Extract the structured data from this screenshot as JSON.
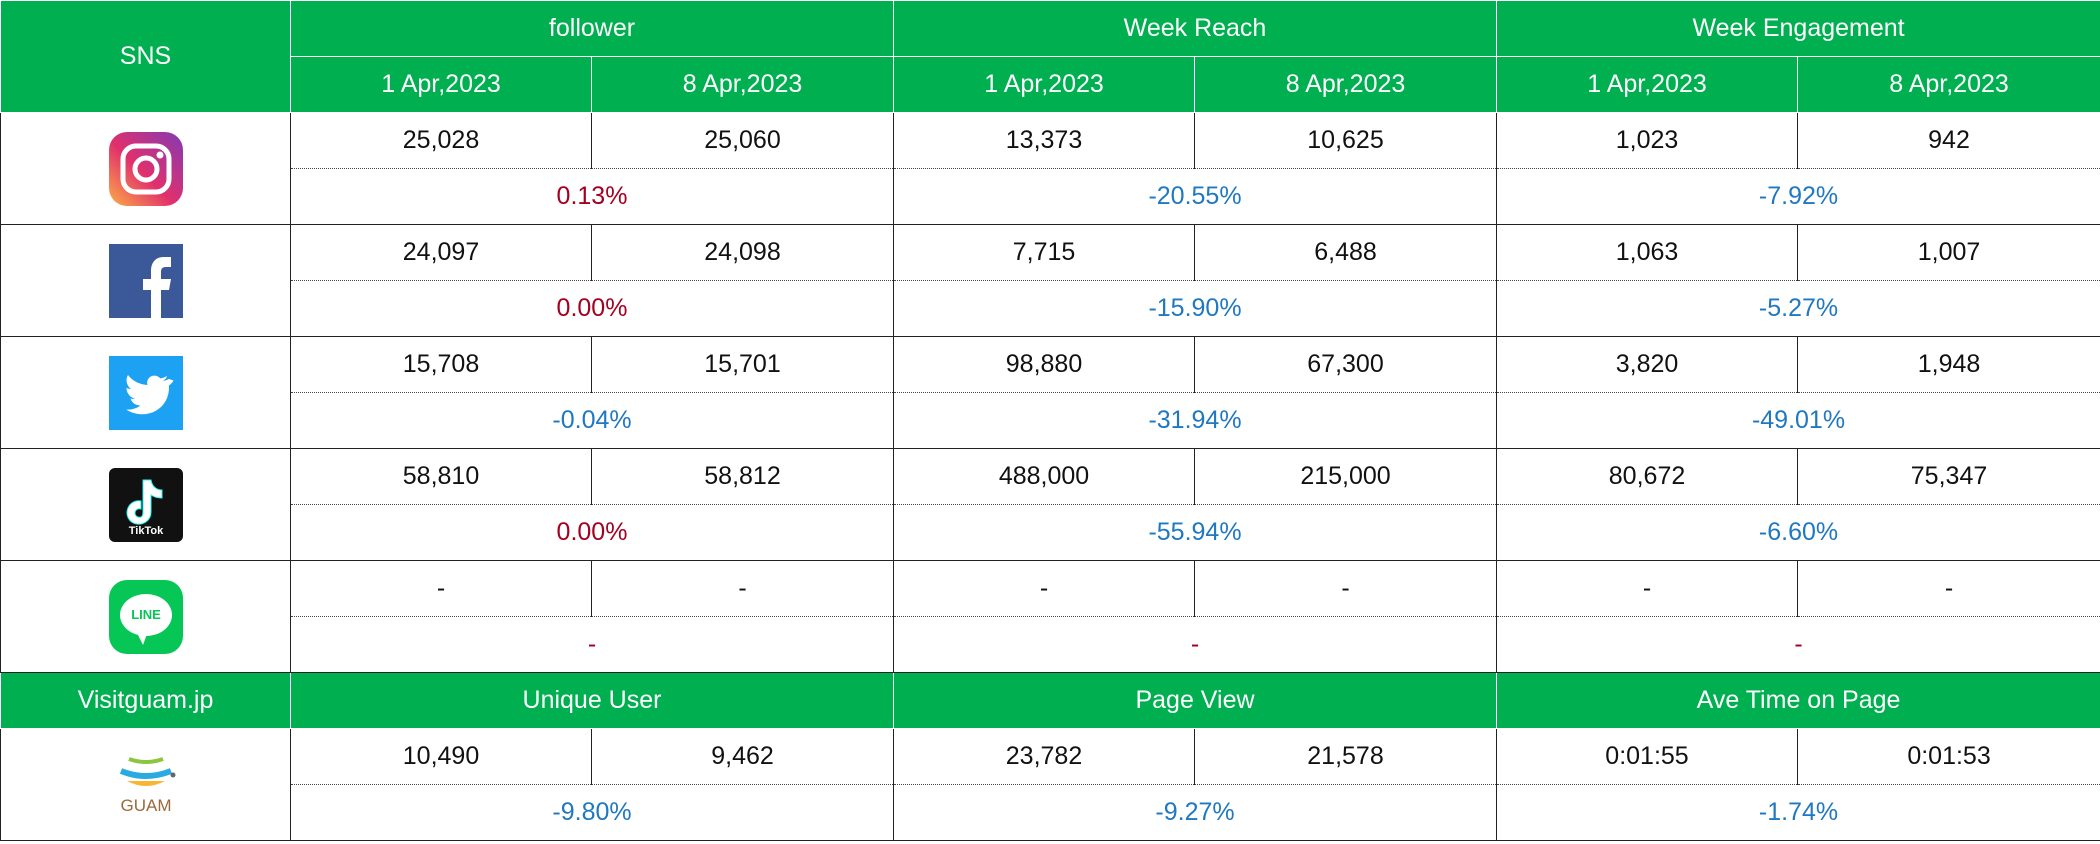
{
  "header": {
    "sns": "SNS",
    "groups": [
      "follower",
      "Week Reach",
      "Week Engagement"
    ],
    "dates": [
      "1 Apr,2023",
      "8 Apr,2023"
    ]
  },
  "rows": [
    {
      "values": [
        "25,028",
        "25,060",
        "13,373",
        "10,625",
        "1,023",
        "942"
      ],
      "changes": [
        {
          "text": "0.13%",
          "color": "#a50021"
        },
        {
          "text": "-20.55%",
          "color": "#1f78c1"
        },
        {
          "text": "-7.92%",
          "color": "#1f78c1"
        }
      ]
    },
    {
      "values": [
        "24,097",
        "24,098",
        "7,715",
        "6,488",
        "1,063",
        "1,007"
      ],
      "changes": [
        {
          "text": "0.00%",
          "color": "#a50021"
        },
        {
          "text": "-15.90%",
          "color": "#1f78c1"
        },
        {
          "text": "-5.27%",
          "color": "#1f78c1"
        }
      ]
    },
    {
      "values": [
        "15,708",
        "15,701",
        "98,880",
        "67,300",
        "3,820",
        "1,948"
      ],
      "changes": [
        {
          "text": "-0.04%",
          "color": "#1f78c1"
        },
        {
          "text": "-31.94%",
          "color": "#1f78c1"
        },
        {
          "text": "-49.01%",
          "color": "#1f78c1"
        }
      ]
    },
    {
      "icon_text": "TikTok",
      "values": [
        "58,810",
        "58,812",
        "488,000",
        "215,000",
        "80,672",
        "75,347"
      ],
      "changes": [
        {
          "text": "0.00%",
          "color": "#a50021"
        },
        {
          "text": "-55.94%",
          "color": "#1f78c1"
        },
        {
          "text": "-6.60%",
          "color": "#1f78c1"
        }
      ]
    },
    {
      "icon_text": "LINE",
      "values": [
        "-",
        "-",
        "-",
        "-",
        "-",
        "-"
      ],
      "changes": [
        {
          "text": "-",
          "color": "#a50021"
        },
        {
          "text": "-",
          "color": "#a50021"
        },
        {
          "text": "-",
          "color": "#a50021"
        }
      ]
    }
  ],
  "site": {
    "title": "Visitguam.jp",
    "metrics": [
      "Unique User",
      "Page View",
      "Ave Time on Page"
    ],
    "logo_text": "GUAM",
    "values": [
      "10,490",
      "9,462",
      "23,782",
      "21,578",
      "0:01:55",
      "0:01:53"
    ],
    "changes": [
      {
        "text": "-9.80%",
        "color": "#1f78c1"
      },
      {
        "text": "-9.27%",
        "color": "#1f78c1"
      },
      {
        "text": "-1.74%",
        "color": "#1f78c1"
      }
    ]
  }
}
